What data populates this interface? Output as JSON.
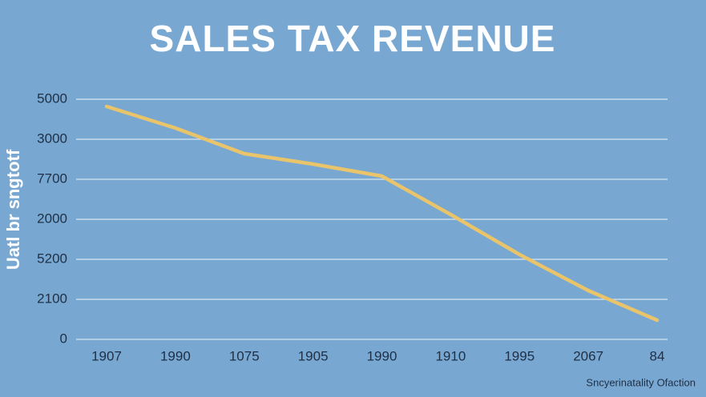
{
  "chart_data": {
    "type": "line",
    "title": "SALES TAX REVENUE",
    "y_label": "Uatl br sngtotf",
    "source": "Sncyerinatality Ofaction",
    "categories": [
      "1907",
      "1990",
      "1075",
      "1905",
      "1990",
      "1910",
      "1995",
      "2067",
      "84"
    ],
    "series": [
      {
        "name": "Sales tax revenue",
        "color": "#e9c46b",
        "values": [
          5.82,
          5.28,
          4.64,
          4.38,
          4.08,
          3.12,
          2.12,
          1.22,
          0.48
        ]
      }
    ],
    "ylim": [
      0,
      6
    ],
    "yticks": [
      0,
      {
        "value": 1,
        "label": "2100"
      },
      {
        "value": 2,
        "label": "5200"
      },
      {
        "value": 3,
        "label": "2000"
      },
      {
        "value": 4,
        "label": "7700"
      },
      {
        "value": 5,
        "label": "3000"
      },
      {
        "value": 6,
        "label": "5000"
      }
    ],
    "grid": true
  }
}
